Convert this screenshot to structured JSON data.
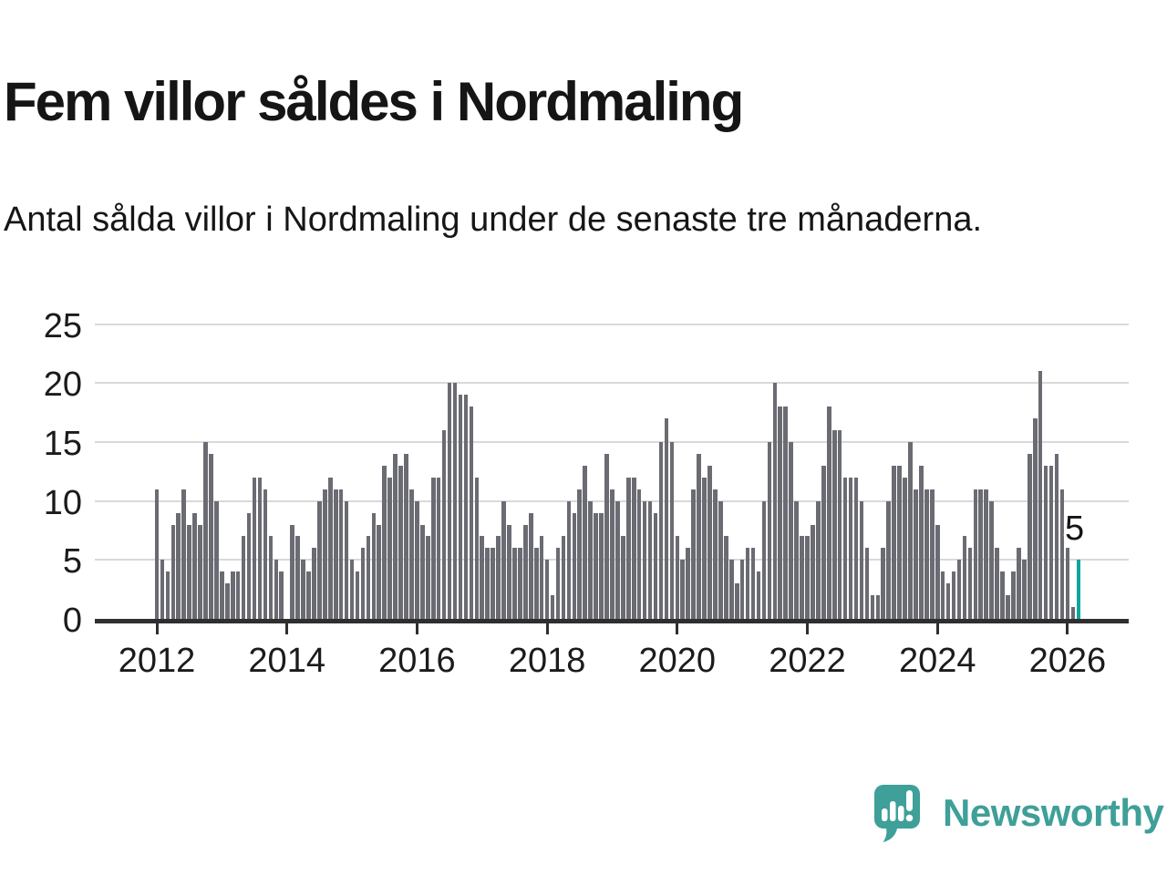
{
  "title": "Fem villor såldes i Nordmaling",
  "subtitle": "Antal sålda villor i Nordmaling under de senaste tre månaderna.",
  "annotation": {
    "last_value_label": "5"
  },
  "branding": {
    "name": "Newsworthy"
  },
  "colors": {
    "bar": "#6b6b73",
    "highlight": "#0ba69d",
    "axis": "#2f2f2f",
    "gridline": "#d9d9d9",
    "brand": "#3f9f99",
    "text": "#151515"
  },
  "chart_data": {
    "type": "bar",
    "title": "Fem villor såldes i Nordmaling",
    "xlabel": "",
    "ylabel": "",
    "x_start": "2012-01",
    "x_frequency": "monthly",
    "x_tick_labels": [
      "2012",
      "2014",
      "2016",
      "2018",
      "2020",
      "2022",
      "2024",
      "2026"
    ],
    "y_ticks": [
      0,
      5,
      10,
      15,
      20,
      25
    ],
    "ylim": [
      0,
      26
    ],
    "grid": "horizontal",
    "legend": "none",
    "highlighted_last_value": 5,
    "values_by_year": {
      "2012": [
        11,
        5,
        4,
        8,
        9,
        11,
        8,
        9,
        8,
        15,
        14,
        10
      ],
      "2013": [
        4,
        3,
        4,
        4,
        7,
        9,
        12,
        12,
        11,
        7,
        5,
        4
      ],
      "2014": [
        0,
        8,
        7,
        5,
        4,
        6,
        10,
        11,
        12,
        11,
        11,
        10
      ],
      "2015": [
        5,
        4,
        6,
        7,
        9,
        8,
        13,
        12,
        14,
        13,
        14,
        11
      ],
      "2016": [
        10,
        8,
        7,
        12,
        12,
        16,
        20,
        20,
        19,
        19,
        18,
        12
      ],
      "2017": [
        7,
        6,
        6,
        7,
        10,
        8,
        6,
        6,
        8,
        9,
        6,
        7
      ],
      "2018": [
        5,
        2,
        6,
        7,
        10,
        9,
        11,
        13,
        10,
        9,
        9,
        14
      ],
      "2019": [
        11,
        10,
        7,
        12,
        12,
        11,
        10,
        10,
        9,
        15,
        17,
        15
      ],
      "2020": [
        7,
        5,
        6,
        11,
        14,
        12,
        13,
        11,
        10,
        7,
        5,
        3
      ],
      "2021": [
        5,
        6,
        6,
        4,
        10,
        15,
        20,
        18,
        18,
        15,
        10,
        7
      ],
      "2022": [
        7,
        8,
        10,
        13,
        18,
        16,
        16,
        12,
        12,
        12,
        10,
        6
      ],
      "2023": [
        2,
        2,
        6,
        10,
        13,
        13,
        12,
        15,
        11,
        13,
        11,
        11
      ],
      "2024": [
        8,
        4,
        3,
        4,
        5,
        7,
        6,
        11,
        11,
        11,
        10,
        6
      ],
      "2025": [
        4,
        2,
        4,
        6,
        5,
        14,
        17,
        21,
        13,
        13,
        14,
        11
      ],
      "2026": [
        6,
        1,
        5
      ]
    }
  }
}
